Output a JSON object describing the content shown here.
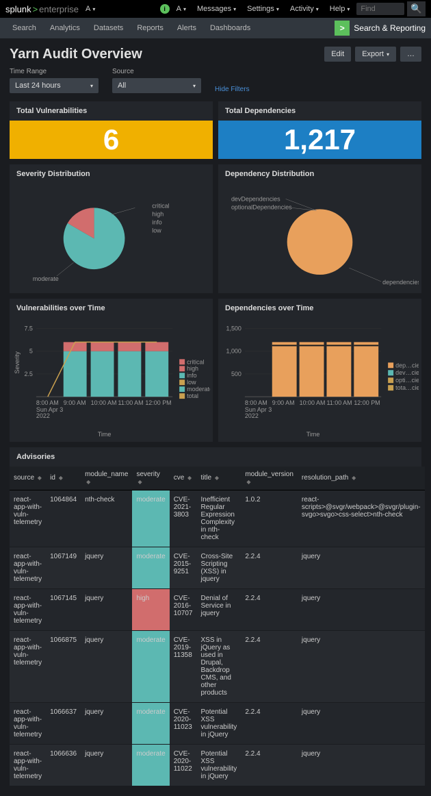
{
  "topbar": {
    "logo_splunk": "splunk",
    "logo_gt": ">",
    "logo_enterprise": "enterprise",
    "admin_short": "A",
    "info_icon": "i",
    "items": [
      {
        "label": "Messages"
      },
      {
        "label": "Settings"
      },
      {
        "label": "Activity"
      },
      {
        "label": "Help"
      }
    ],
    "search_placeholder": "Find"
  },
  "navbar2": {
    "items": [
      "Search",
      "Analytics",
      "Datasets",
      "Reports",
      "Alerts",
      "Dashboards"
    ],
    "app_label": "Search & Reporting",
    "app_icon": ">"
  },
  "header": {
    "title": "Yarn Audit Overview",
    "edit": "Edit",
    "export": "Export",
    "more": "…"
  },
  "filters": {
    "time_label": "Time Range",
    "time_value": "Last 24 hours",
    "source_label": "Source",
    "source_value": "All",
    "hide": "Hide Filters"
  },
  "panels": {
    "total_vuln_title": "Total Vulnerabilities",
    "total_vuln_value": "6",
    "total_vuln_color": "#f0b000",
    "total_dep_title": "Total Dependencies",
    "total_dep_value": "1,217",
    "total_dep_color": "#1d7fc4",
    "sev_dist_title": "Severity Distribution",
    "dep_dist_title": "Dependency Distribution",
    "vuln_time_title": "Vulnerabilities over Time",
    "dep_time_title": "Dependencies over Time",
    "advisories_title": "Advisories"
  },
  "sev_pie": {
    "slices": [
      {
        "label": "moderate",
        "value": 5,
        "color": "#5cb8b2",
        "start": 0,
        "end": 300
      },
      {
        "label": "high",
        "value": 1,
        "color": "#d16d6d",
        "start": 300,
        "end": 360
      }
    ],
    "legend": [
      "critical",
      "high",
      "info",
      "low"
    ],
    "callout": "moderate"
  },
  "dep_pie": {
    "color": "#e8a05c",
    "legend_left": [
      "devDependencies",
      "optionalDependencies"
    ],
    "legend_right": "dependencies"
  },
  "vuln_time": {
    "y_label": "Severity",
    "x_label": "Time",
    "y_ticks": [
      "2.5",
      "5",
      "7.5"
    ],
    "y_max": 7.5,
    "x_ticks": [
      "8:00 AM",
      "9:00 AM",
      "10:00 AM",
      "11:00 AM",
      "12:00 PM"
    ],
    "x_sub": [
      "Sun Apr 3",
      "2022"
    ],
    "series": {
      "moderate_color": "#5cb8b2",
      "high_color": "#d16d6d",
      "total_color": "#c9a050"
    },
    "legend": [
      "critical",
      "high",
      "info",
      "low",
      "moderate",
      "total"
    ],
    "legend_colors": [
      "#d16d6d",
      "#d16d6d",
      "#5cb8b2",
      "#c9a050",
      "#5cb8b2",
      "#c9a050"
    ],
    "bars": [
      {
        "x": 0,
        "mod": 0,
        "high": 0
      },
      {
        "x": 1,
        "mod": 5,
        "high": 1
      },
      {
        "x": 2,
        "mod": 5,
        "high": 1
      },
      {
        "x": 3,
        "mod": 5,
        "high": 1
      },
      {
        "x": 4,
        "mod": 5,
        "high": 1
      }
    ],
    "total_line": [
      0,
      6,
      6,
      6,
      6
    ]
  },
  "dep_time": {
    "x_label": "Time",
    "y_ticks": [
      "500",
      "1,000",
      "1,500"
    ],
    "y_max": 1500,
    "x_ticks": [
      "8:00 AM",
      "9:00 AM",
      "10:00 AM",
      "11:00 AM",
      "12:00 PM"
    ],
    "x_sub": [
      "Sun Apr 3",
      "2022"
    ],
    "legend": [
      "dep…cies",
      "dev…cies",
      "opti…cies",
      "tota…cies"
    ],
    "legend_colors": [
      "#e8a05c",
      "#5cb8b2",
      "#c9a050",
      "#c9a050"
    ],
    "bar_color": "#e8a05c",
    "bars": [
      0,
      1200,
      1200,
      1200,
      1200
    ]
  },
  "advisories": {
    "columns": [
      "source",
      "id",
      "module_name",
      "severity",
      "cve",
      "title",
      "module_version",
      "resolution_path"
    ],
    "rows": [
      {
        "source": "react-app-with-vuln-telemetry",
        "id": "1064864",
        "module": "nth-check",
        "severity": "moderate",
        "cve": "CVE-2021-3803",
        "title": "Inefficient Regular Expression Complexity in nth-check",
        "version": "1.0.2",
        "path": "react-scripts>@svgr/webpack>@svgr/plugin-svgo>svgo>css-select>nth-check"
      },
      {
        "source": "react-app-with-vuln-telemetry",
        "id": "1067149",
        "module": "jquery",
        "severity": "moderate",
        "cve": "CVE-2015-9251",
        "title": "Cross-Site Scripting (XSS) in jquery",
        "version": "2.2.4",
        "path": "jquery"
      },
      {
        "source": "react-app-with-vuln-telemetry",
        "id": "1067145",
        "module": "jquery",
        "severity": "high",
        "cve": "CVE-2016-10707",
        "title": "Denial of Service in jquery",
        "version": "2.2.4",
        "path": "jquery"
      },
      {
        "source": "react-app-with-vuln-telemetry",
        "id": "1066875",
        "module": "jquery",
        "severity": "moderate",
        "cve": "CVE-2019-11358",
        "title": "XSS in jQuery as used in Drupal, Backdrop CMS, and other products",
        "version": "2.2.4",
        "path": "jquery"
      },
      {
        "source": "react-app-with-vuln-telemetry",
        "id": "1066637",
        "module": "jquery",
        "severity": "moderate",
        "cve": "CVE-2020-11023",
        "title": "Potential XSS vulnerability in jQuery",
        "version": "2.2.4",
        "path": "jquery"
      },
      {
        "source": "react-app-with-vuln-telemetry",
        "id": "1066636",
        "module": "jquery",
        "severity": "moderate",
        "cve": "CVE-2020-11022",
        "title": "Potential XSS vulnerability in jQuery",
        "version": "2.2.4",
        "path": "jquery"
      }
    ]
  }
}
